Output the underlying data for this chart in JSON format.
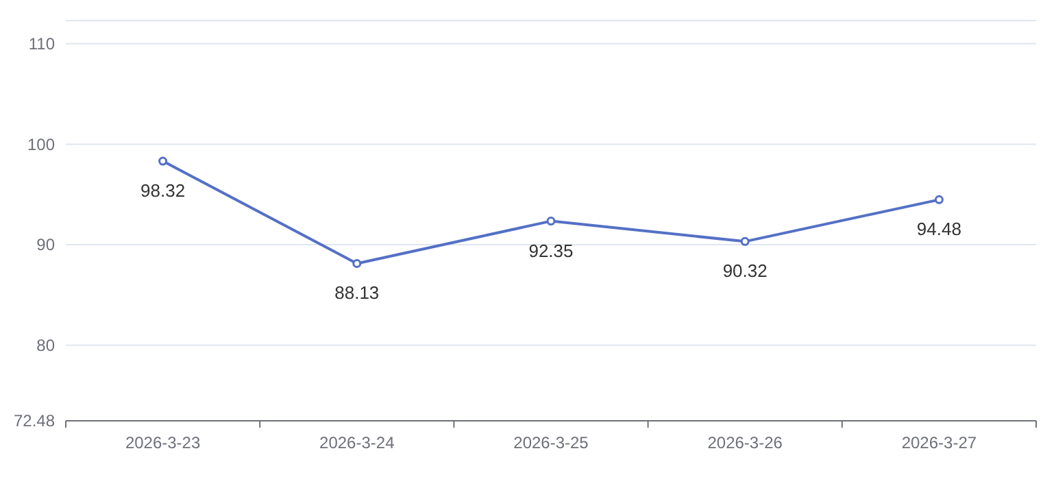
{
  "chart_data": {
    "type": "line",
    "categories": [
      "2026-3-23",
      "2026-3-24",
      "2026-3-25",
      "2026-3-26",
      "2026-3-27"
    ],
    "series": [
      {
        "color": "#5470c6",
        "values": [
          98.32,
          88.13,
          92.35,
          90.32,
          94.48
        ]
      }
    ],
    "ylim": [
      72.48,
      112.3
    ],
    "yticks": [
      72.48,
      80,
      90,
      100,
      110,
      {
        "value": 112.3,
        "label": null
      }
    ],
    "grid": "y",
    "data_labels": true,
    "marker": "circle",
    "line_style": "solid"
  }
}
